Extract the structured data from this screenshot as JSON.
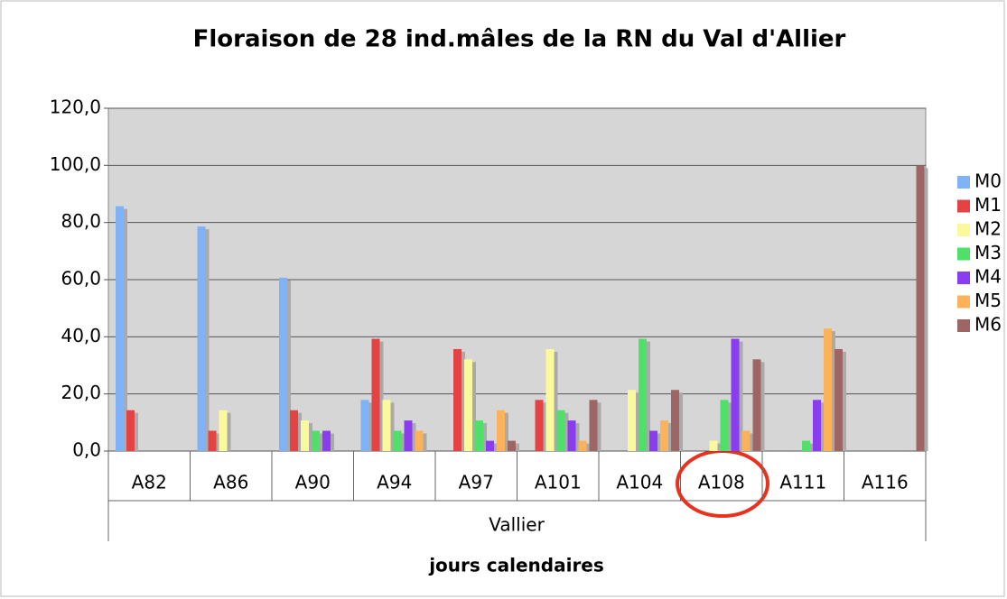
{
  "chart_data": {
    "type": "bar",
    "title": "Floraison de 28 ind.mâles de la RN du Val d'Allier",
    "categories": [
      "A82",
      "A86",
      "A90",
      "A94",
      "A97",
      "A101",
      "A104",
      "A108",
      "A111",
      "A116"
    ],
    "group_label": "Vallier",
    "x_label": "jours calendaires",
    "series": [
      {
        "name": "M0",
        "color": "#7fb2f7",
        "values": [
          85.7,
          78.6,
          60.7,
          17.9,
          0,
          0,
          0,
          0,
          0,
          0
        ]
      },
      {
        "name": "M1",
        "color": "#e44343",
        "values": [
          14.3,
          7.1,
          14.3,
          39.3,
          35.7,
          17.9,
          0,
          0,
          0,
          0
        ]
      },
      {
        "name": "M2",
        "color": "#fafa9c",
        "values": [
          0,
          14.3,
          10.7,
          17.9,
          32.1,
          35.7,
          21.4,
          3.6,
          0,
          0
        ]
      },
      {
        "name": "M3",
        "color": "#4fe06a",
        "values": [
          0,
          0,
          7.1,
          7.1,
          10.7,
          14.3,
          39.3,
          17.9,
          3.6,
          0
        ]
      },
      {
        "name": "M4",
        "color": "#8a3cef",
        "values": [
          0,
          0,
          7.1,
          10.7,
          3.6,
          10.7,
          7.1,
          39.3,
          17.9,
          0
        ]
      },
      {
        "name": "M5",
        "color": "#fbb25a",
        "values": [
          0,
          0,
          0,
          7.1,
          14.3,
          3.6,
          10.7,
          7.1,
          42.9,
          0
        ]
      },
      {
        "name": "M6",
        "color": "#9e6565",
        "values": [
          0,
          0,
          0,
          0,
          3.6,
          17.9,
          21.4,
          32.1,
          35.7,
          100
        ]
      }
    ],
    "ylim": [
      0,
      120
    ],
    "yticks": [
      {
        "value": 0,
        "label": "0,0"
      },
      {
        "value": 20,
        "label": "20,0"
      },
      {
        "value": 40,
        "label": "40,0"
      },
      {
        "value": 60,
        "label": "60,0"
      },
      {
        "value": 80,
        "label": "80,0"
      },
      {
        "value": 100,
        "label": "100,0"
      },
      {
        "value": 120,
        "label": "120,0"
      }
    ],
    "grid": true
  }
}
